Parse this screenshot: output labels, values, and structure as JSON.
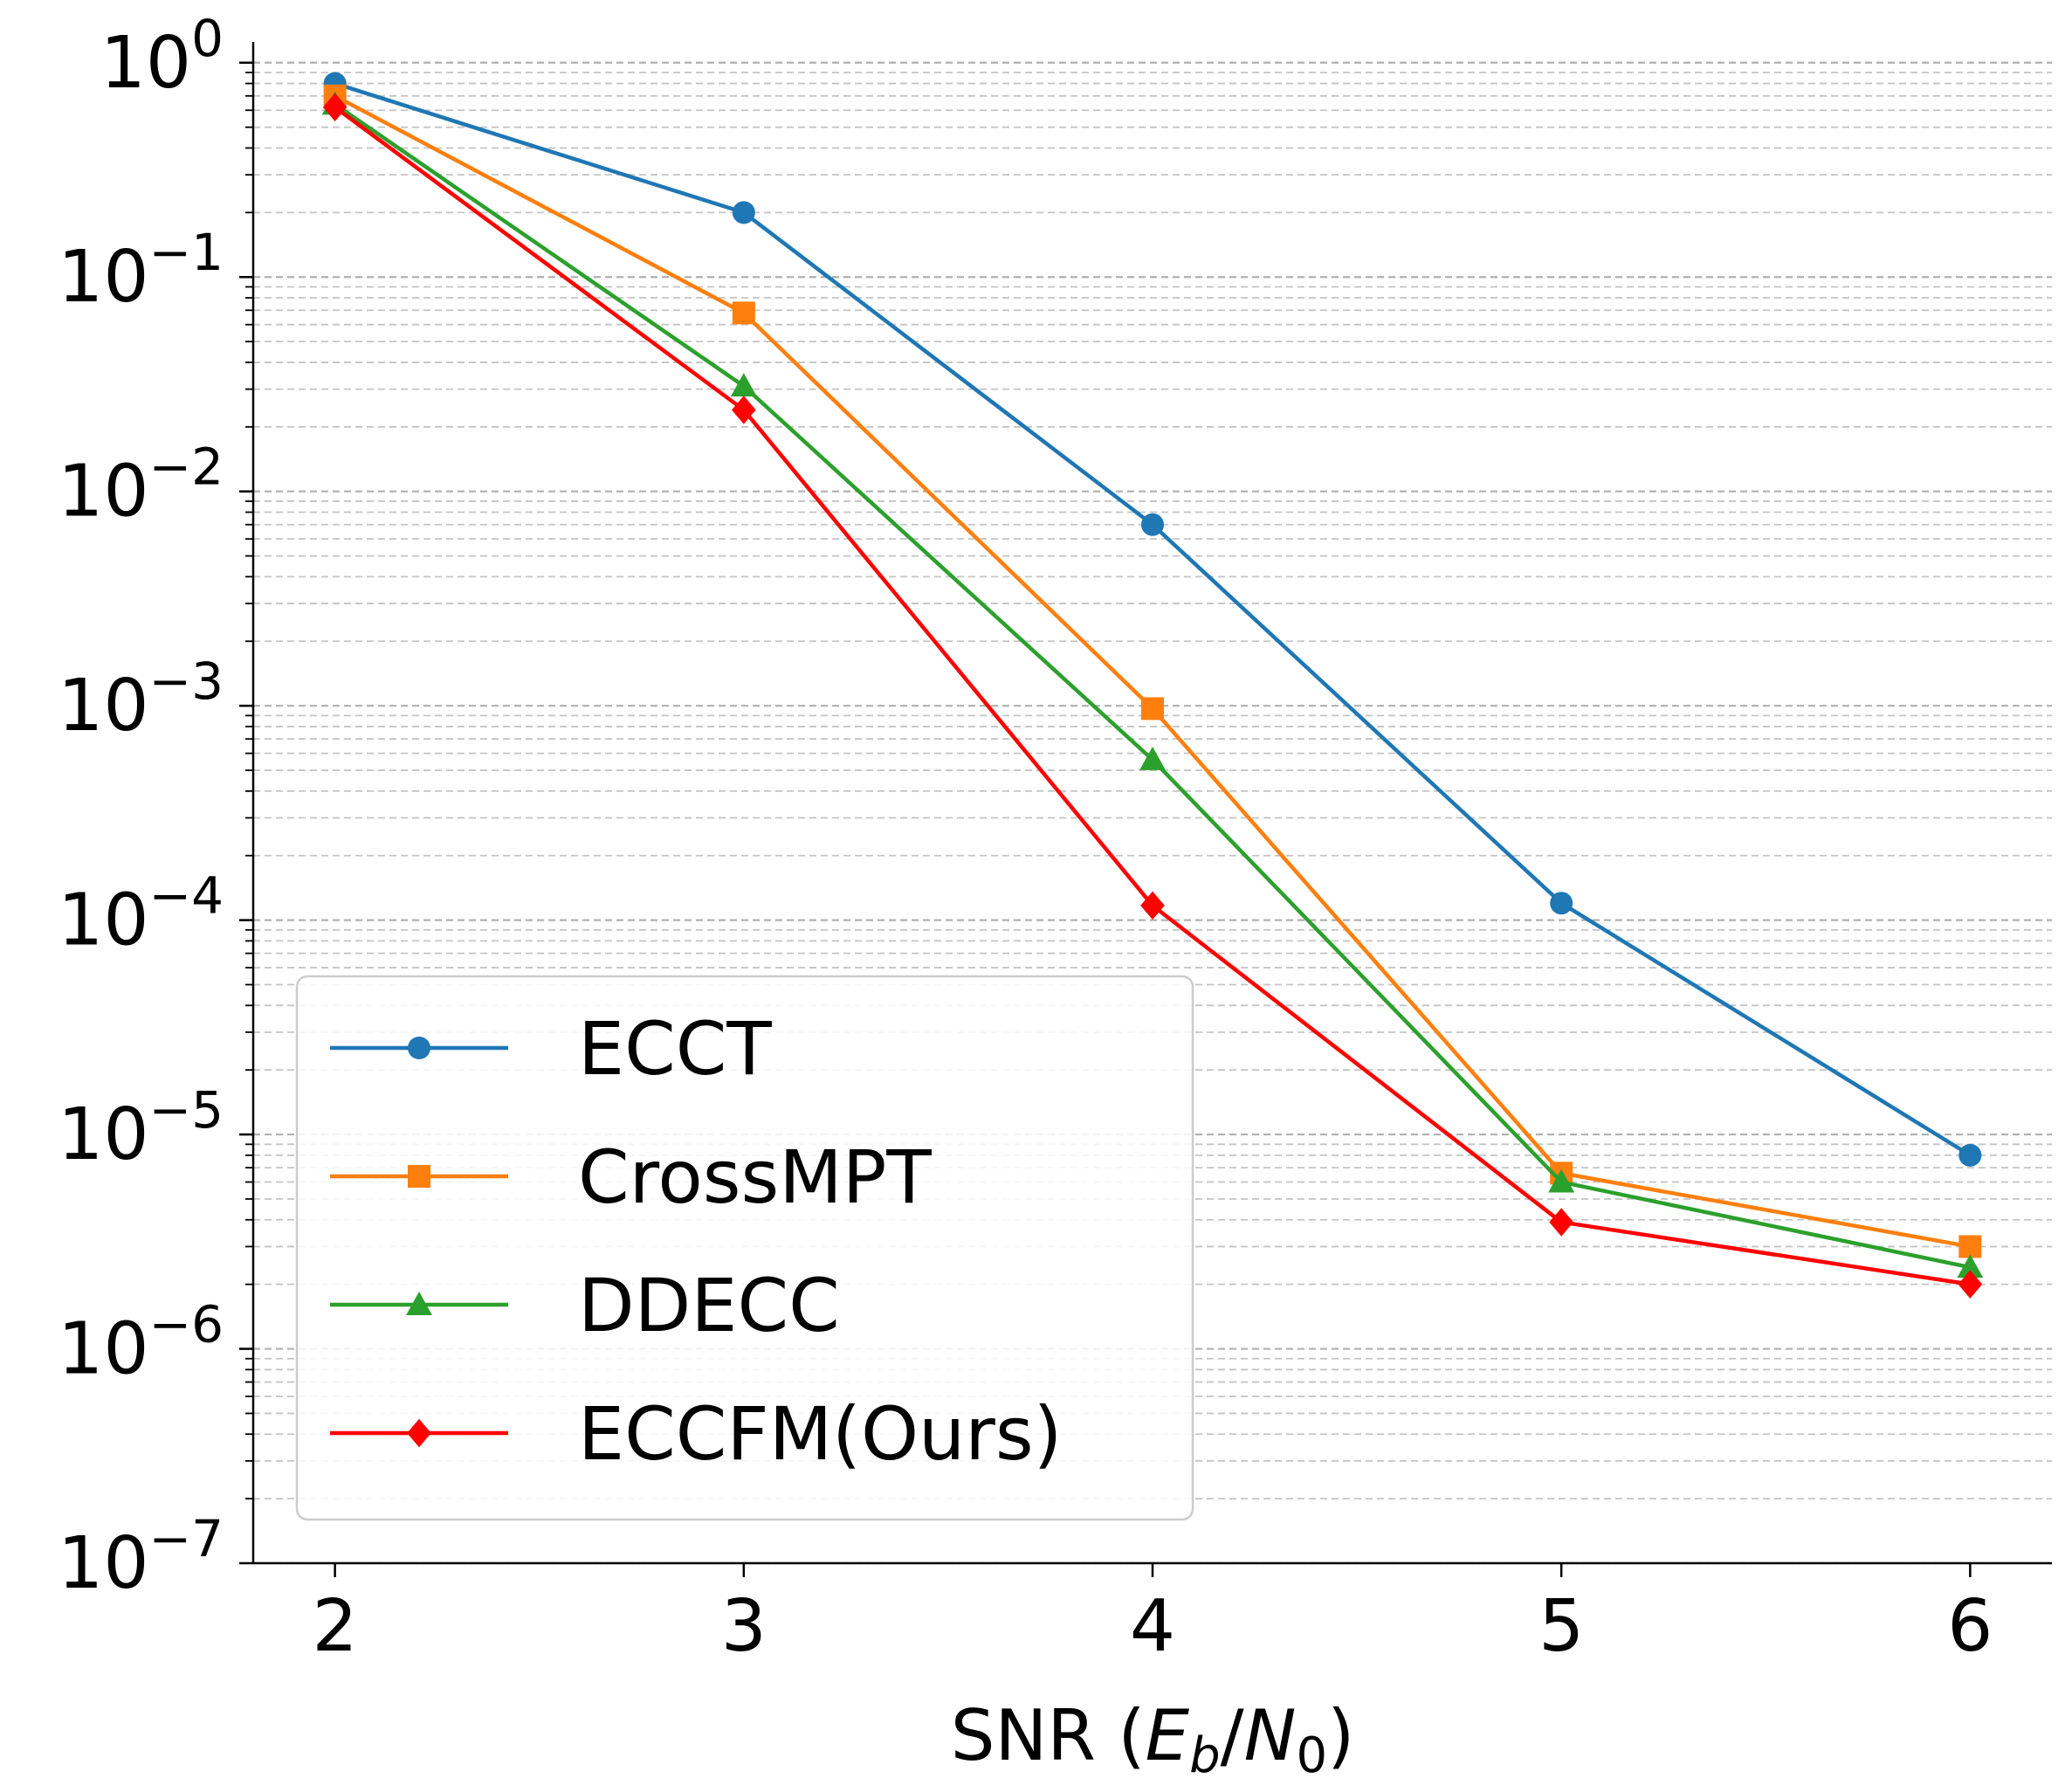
{
  "chart_data": {
    "type": "line",
    "title": "",
    "xlabel": "SNR (E_b/N_0)",
    "xlabel_parts": {
      "prefix": "SNR (",
      "var1": "E",
      "sub1": "b",
      "slash": "/",
      "var2": "N",
      "sub2": "0",
      "suffix": ")"
    },
    "ylabel": "",
    "x": [
      2,
      3,
      4,
      5,
      6
    ],
    "x_tick_labels": [
      "2",
      "3",
      "4",
      "5",
      "6"
    ],
    "xlim": [
      1.8,
      6.2
    ],
    "yscale": "log",
    "ylim": [
      1e-07,
      1.25
    ],
    "y_tick_labels": [
      {
        "base": "10",
        "exp": "0",
        "value": 1
      },
      {
        "base": "10",
        "exp": "−1",
        "value": 0.1
      },
      {
        "base": "10",
        "exp": "−2",
        "value": 0.01
      },
      {
        "base": "10",
        "exp": "−3",
        "value": 0.001
      },
      {
        "base": "10",
        "exp": "−4",
        "value": 0.0001
      },
      {
        "base": "10",
        "exp": "−5",
        "value": 1e-05
      },
      {
        "base": "10",
        "exp": "−6",
        "value": 1e-06
      },
      {
        "base": "10",
        "exp": "−7",
        "value": 1e-07
      }
    ],
    "grid": "y-major-and-minor-dashed",
    "legend_position": "lower-left",
    "series": [
      {
        "name": "ECCT",
        "color": "#1f77b4",
        "marker": "circle",
        "values": [
          0.8,
          0.2,
          0.007,
          0.00012,
          8e-06
        ]
      },
      {
        "name": "CrossMPT",
        "color": "#ff7f0e",
        "marker": "square",
        "values": [
          0.7,
          0.068,
          0.00097,
          6.6e-06,
          3e-06
        ]
      },
      {
        "name": "DDECC",
        "color": "#2ca02c",
        "marker": "triangle",
        "values": [
          0.64,
          0.031,
          0.00056,
          6e-06,
          2.4e-06
        ]
      },
      {
        "name": "ECCFM(Ours)",
        "color": "#ff0000",
        "marker": "diamond",
        "values": [
          0.62,
          0.024,
          0.000117,
          3.9e-06,
          2e-06
        ]
      }
    ]
  }
}
